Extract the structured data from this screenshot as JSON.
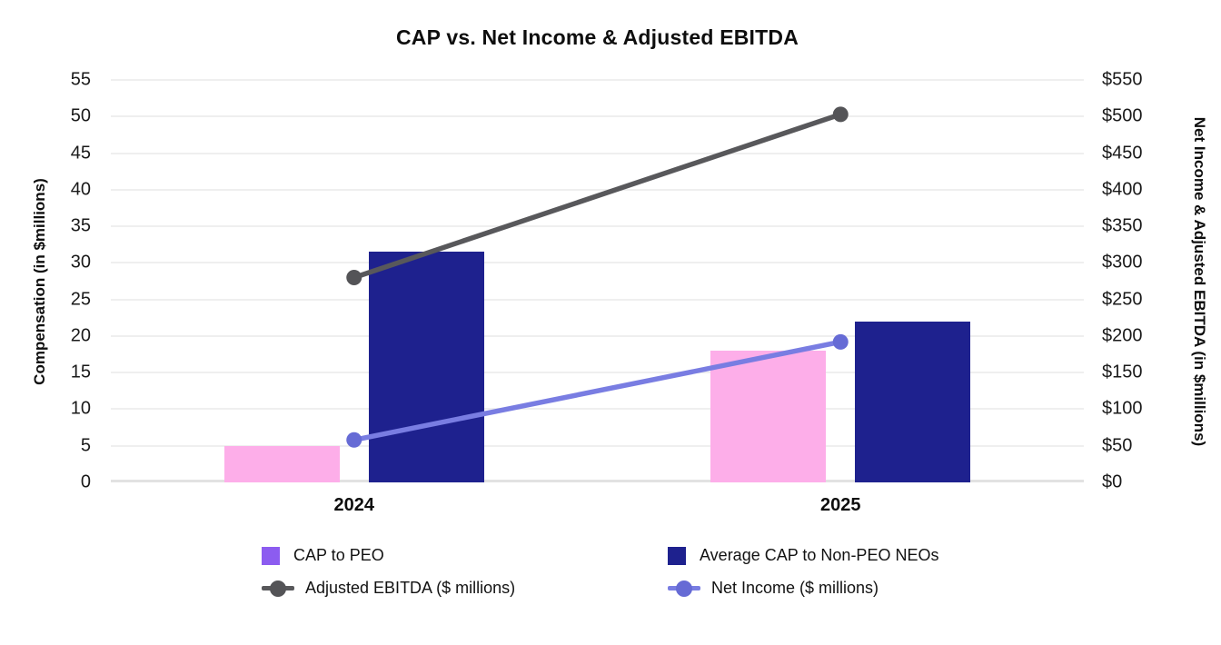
{
  "chart_data": {
    "type": "combo-bar-line",
    "title": "CAP vs. Net Income & Adjusted EBITDA",
    "categories": [
      "2024",
      "2025"
    ],
    "grid": true,
    "legend_position": "bottom",
    "left_axis": {
      "label": "Compensation (in $millions)",
      "min": 0,
      "max": 55,
      "step": 5,
      "ticks": [
        "0",
        "5",
        "10",
        "15",
        "20",
        "25",
        "30",
        "35",
        "40",
        "45",
        "50",
        "55"
      ]
    },
    "right_axis": {
      "label": "Net Income & Adjusted EBITDA (in $millions)",
      "min": 0,
      "max": 550,
      "step": 50,
      "ticks": [
        "$0",
        "$50",
        "$100",
        "$150",
        "$200",
        "$250",
        "$300",
        "$350",
        "$400",
        "$450",
        "$500",
        "$550"
      ]
    },
    "series": [
      {
        "name": "CAP to PEO",
        "type": "bar",
        "axis": "left",
        "values": [
          5,
          18
        ],
        "bar_color": "#fdaee9",
        "legend_swatch_color": "#8c5cf0"
      },
      {
        "name": "Average CAP to Non-PEO NEOs",
        "type": "bar",
        "axis": "left",
        "values": [
          31.5,
          22
        ],
        "bar_color": "#1e218e",
        "legend_swatch_color": "#1e218e"
      },
      {
        "name": "Adjusted EBITDA ($ millions)",
        "type": "line",
        "axis": "right",
        "values": [
          280,
          503
        ],
        "color": "#58585b",
        "marker_color": "#545457"
      },
      {
        "name": "Net Income ($ millions)",
        "type": "line",
        "axis": "right",
        "values": [
          58,
          192
        ],
        "color": "#797de2",
        "marker_color": "#666bd5"
      }
    ]
  }
}
